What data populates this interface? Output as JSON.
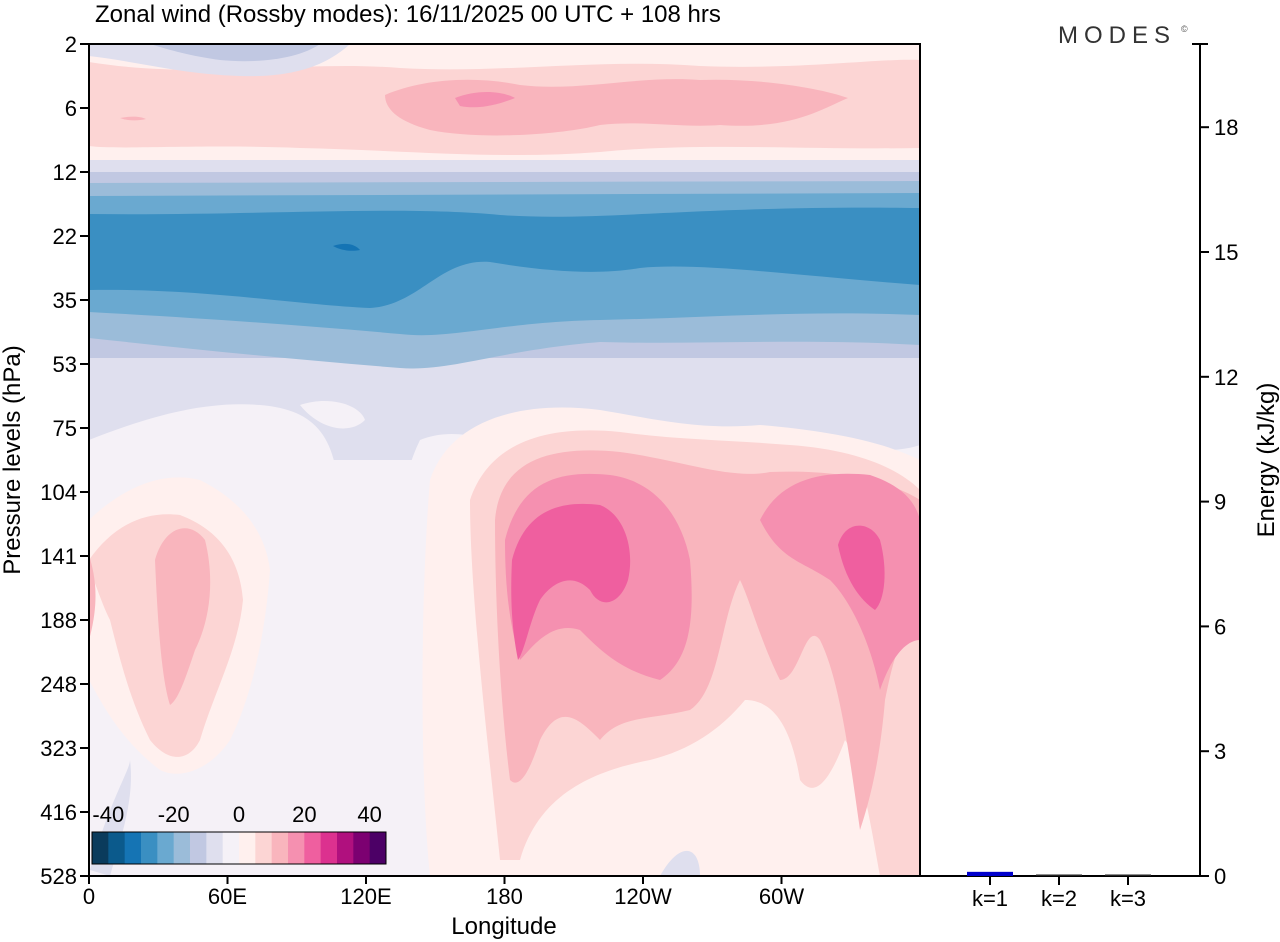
{
  "chart_data": {
    "type": "heatmap",
    "title": "Zonal wind (Rossby modes):  16/11/2025  00 UTC  + 108 hrs",
    "logo": "MODES",
    "logo_mark": "©",
    "xlabel": "Longitude",
    "ylabel": "Pressure levels (hPa)",
    "x_ticks": [
      {
        "deg": 0,
        "label": "0"
      },
      {
        "deg": 60,
        "label": "60E"
      },
      {
        "deg": 120,
        "label": "120E"
      },
      {
        "deg": 180,
        "label": "180"
      },
      {
        "deg": 240,
        "label": "120W"
      },
      {
        "deg": 300,
        "label": "60W"
      }
    ],
    "xlim": [
      0,
      360
    ],
    "y_levels": [
      "2",
      "6",
      "12",
      "22",
      "35",
      "53",
      "75",
      "104",
      "141",
      "188",
      "248",
      "323",
      "416",
      "528"
    ],
    "colorbar": {
      "ticks": [
        "-40",
        "-20",
        "0",
        "20",
        "40"
      ],
      "range": [
        -45,
        45
      ],
      "step": 5,
      "colors": [
        "#0a3b5c",
        "#0b5a8c",
        "#1574b4",
        "#3a8fc2",
        "#6aa9d0",
        "#9bbcd9",
        "#c1c8e2",
        "#dfdfee",
        "#f5f1f7",
        "#fff0ee",
        "#fcd5d4",
        "#f9b5bd",
        "#f590b0",
        "#ef5f9f",
        "#dc318f",
        "#b0107e",
        "#7c0071",
        "#4c0066"
      ]
    },
    "energy_panel": {
      "ylabel": "Energy (kJ/kg)",
      "ylim": [
        0,
        20
      ],
      "y_ticks": [
        0,
        3,
        6,
        9,
        12,
        15,
        18
      ],
      "bars": [
        {
          "label": "k=1",
          "value": 0.1,
          "color": "#0000cc"
        },
        {
          "label": "k=2",
          "value": 0.03,
          "color": "#222222"
        },
        {
          "label": "k=3",
          "value": 0.03,
          "color": "#222222"
        }
      ]
    }
  }
}
